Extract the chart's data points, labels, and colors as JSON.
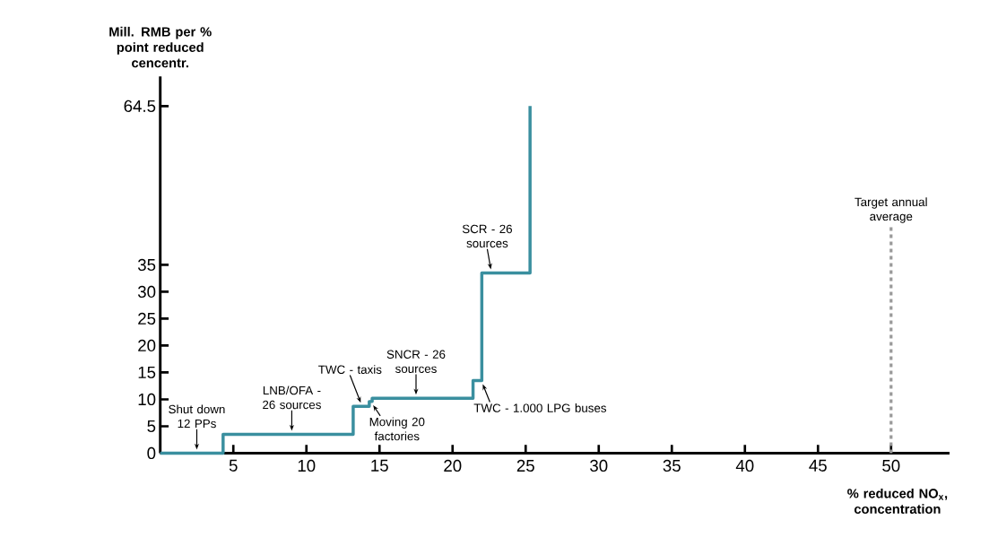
{
  "chart_data": {
    "type": "step",
    "xlabel": "% reduced NO$_{x}$, concentration",
    "ylabel": "Mill. RMB per % point reduced cencentr.",
    "x": [
      0,
      4.3,
      13.2,
      14.3,
      14.5,
      21.4,
      22.0,
      25.3
    ],
    "values": [
      0,
      3.5,
      8.7,
      9.6,
      10.2,
      13.5,
      33.5,
      64.5
    ],
    "color": "#3a8f9f",
    "xlim": [
      0,
      54
    ],
    "ylim": [
      0,
      70
    ],
    "xticks": [
      5,
      10,
      15,
      20,
      25,
      30,
      35,
      40,
      45,
      50
    ],
    "yticks": [
      0,
      5,
      10,
      15,
      20,
      25,
      30,
      35,
      64.5
    ],
    "grid": false,
    "ref_lines": [
      {
        "axis": "x",
        "value": 50,
        "label": "Target annual average",
        "color": "#999999",
        "line_style": "dashed"
      }
    ],
    "annotations": [
      {
        "text": "Shut down 12 PPs",
        "x": 2.5,
        "y": 0
      },
      {
        "text": "LNB/OFA - 26 sources",
        "x": 9,
        "y": 3.5
      },
      {
        "text": "TWC - taxis",
        "x": 13.8,
        "y": 8.7
      },
      {
        "text": "Moving 20 factories",
        "x": 14.4,
        "y": 9.6
      },
      {
        "text": "SNCR - 26 sources",
        "x": 17.5,
        "y": 10.2
      },
      {
        "text": "TWC - 1.000 LPG buses",
        "x": 21.9,
        "y": 13.5
      },
      {
        "text": "SCR - 26 sources",
        "x": 22.7,
        "y": 33.5
      }
    ]
  }
}
